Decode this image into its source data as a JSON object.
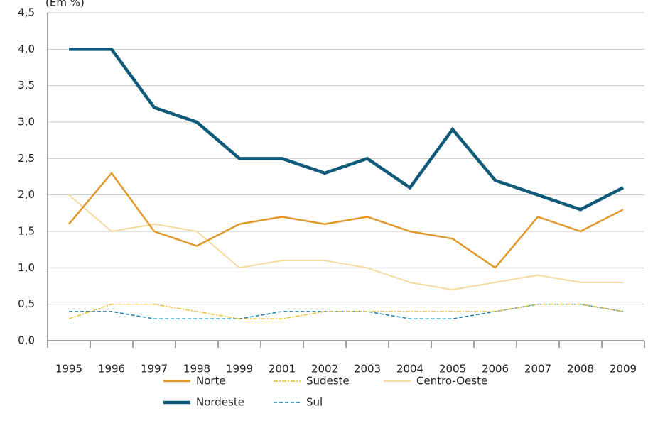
{
  "chart_data": {
    "type": "line",
    "y_label": "(Em %)",
    "categories": [
      "1995",
      "1996",
      "1997",
      "1998",
      "1999",
      "2001",
      "2002",
      "2003",
      "2004",
      "2005",
      "2006",
      "2007",
      "2008",
      "2009"
    ],
    "series": [
      {
        "name": "Norte",
        "color": "#e0982a",
        "width": 2.5,
        "dash": "solid",
        "values": [
          1.6,
          2.3,
          1.5,
          1.3,
          1.6,
          1.7,
          1.6,
          1.7,
          1.5,
          1.4,
          1.0,
          1.7,
          1.5,
          1.8
        ]
      },
      {
        "name": "Nordeste",
        "color": "#0e5a78",
        "width": 4.5,
        "dash": "solid",
        "values": [
          4.0,
          4.0,
          3.2,
          3.0,
          2.5,
          2.5,
          2.3,
          2.5,
          2.1,
          2.9,
          2.2,
          2.0,
          1.8,
          2.1
        ]
      },
      {
        "name": "Sudeste",
        "color": "#e8c234",
        "width": 1.5,
        "dash": "dashdot",
        "values": [
          0.3,
          0.5,
          0.5,
          0.4,
          0.3,
          0.3,
          0.4,
          0.4,
          0.4,
          0.4,
          0.4,
          0.5,
          0.5,
          0.4
        ]
      },
      {
        "name": "Sul",
        "color": "#1a7fb0",
        "width": 1.5,
        "dash": "dashed",
        "values": [
          0.4,
          0.4,
          0.3,
          0.3,
          0.3,
          0.4,
          0.4,
          0.4,
          0.3,
          0.3,
          0.4,
          0.5,
          0.5,
          0.4
        ]
      },
      {
        "name": "Centro-Oeste",
        "color": "#f5d9a0",
        "width": 2,
        "dash": "solid",
        "values": [
          2.0,
          1.5,
          1.6,
          1.5,
          1.0,
          1.1,
          1.1,
          1.0,
          0.8,
          0.7,
          0.8,
          0.9,
          0.8,
          0.8
        ]
      }
    ],
    "ylim": [
      0,
      4.5
    ],
    "yticks": [
      {
        "value": 0,
        "label": "0,0"
      },
      {
        "value": 0.5,
        "label": "0,5"
      },
      {
        "value": 1,
        "label": "1,0"
      },
      {
        "value": 1.5,
        "label": "1,5"
      },
      {
        "value": 2,
        "label": "2,0"
      },
      {
        "value": 2.5,
        "label": "2,5"
      },
      {
        "value": 3,
        "label": "3,0"
      },
      {
        "value": 3.5,
        "label": "3,5"
      },
      {
        "value": 4,
        "label": "4,0"
      },
      {
        "value": 4.5,
        "label": "4,5"
      }
    ],
    "grid": true
  }
}
